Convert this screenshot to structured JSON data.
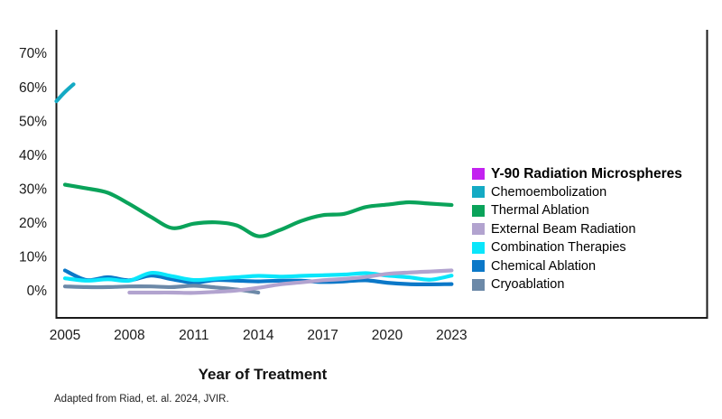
{
  "chart_data": {
    "type": "line",
    "title": "",
    "xlabel": "Year of Treatment",
    "ylabel": "",
    "grid": false,
    "legend_position": "inside-right",
    "x_axis": {
      "ticks": [
        2005,
        2008,
        2011,
        2014,
        2017,
        2020,
        2023
      ],
      "range_years": [
        2004.5,
        2023
      ]
    },
    "y_axis": {
      "ticks": [
        {
          "value": 0,
          "label": "0%"
        },
        {
          "value": 10,
          "label": "10%"
        },
        {
          "value": 20,
          "label": "20%"
        },
        {
          "value": 30,
          "label": "30%"
        },
        {
          "value": 40,
          "label": "40%"
        },
        {
          "value": 50,
          "label": "50%"
        },
        {
          "value": 60,
          "label": "60%"
        },
        {
          "value": 70,
          "label": "70%"
        }
      ],
      "unit": "%",
      "range": [
        0,
        75
      ]
    },
    "series": [
      {
        "name": "Y-90 Radiation Microspheres",
        "color": "#c322f0",
        "years": [],
        "values": [],
        "note": "legend entry only; no line visible in plot area"
      },
      {
        "name": "Chemoembolization",
        "color": "#14aac4",
        "years": [
          2004.6,
          2005,
          2005.4
        ],
        "values": [
          55.8,
          58.5,
          60.8
        ],
        "note": "only a short rising segment near 2005 is visible; line truncated"
      },
      {
        "name": "Thermal Ablation",
        "color": "#0aa35a",
        "years": [
          2005,
          2006,
          2007,
          2008,
          2009,
          2010,
          2011,
          2012,
          2013,
          2014,
          2015,
          2016,
          2017,
          2018,
          2019,
          2020,
          2021,
          2022,
          2023
        ],
        "values": [
          31.2,
          30.1,
          28.8,
          25.5,
          21.7,
          18.4,
          19.7,
          20.1,
          19.2,
          16.0,
          17.8,
          20.5,
          22.2,
          22.6,
          24.6,
          25.3,
          26.0,
          25.6,
          25.2
        ]
      },
      {
        "name": "External Beam Radiation",
        "color": "#b2a3cf",
        "years": [
          2008,
          2009,
          2010,
          2011,
          2012,
          2013,
          2014,
          2015,
          2016,
          2017,
          2018,
          2019,
          2020,
          2021,
          2022,
          2023
        ],
        "values": [
          -0.6,
          -0.6,
          -0.6,
          -0.7,
          -0.4,
          0.0,
          0.8,
          1.8,
          2.4,
          3.0,
          3.4,
          4.0,
          4.9,
          5.3,
          5.6,
          5.9
        ]
      },
      {
        "name": "Combination Therapies",
        "color": "#0ae6fb",
        "years": [
          2005,
          2006,
          2007,
          2008,
          2009,
          2010,
          2011,
          2012,
          2013,
          2014,
          2015,
          2016,
          2017,
          2018,
          2019,
          2020,
          2021,
          2022,
          2023
        ],
        "values": [
          3.6,
          2.9,
          3.3,
          2.9,
          5.2,
          4.2,
          3.1,
          3.5,
          3.9,
          4.3,
          4.1,
          4.3,
          4.5,
          4.7,
          5.1,
          4.4,
          3.9,
          3.2,
          4.4
        ]
      },
      {
        "name": "Chemical Ablation",
        "color": "#0b78c8",
        "years": [
          2005,
          2006,
          2007,
          2008,
          2009,
          2010,
          2011,
          2012,
          2013,
          2014,
          2015,
          2016,
          2017,
          2018,
          2019,
          2020,
          2021,
          2022,
          2023
        ],
        "values": [
          5.9,
          3.1,
          3.9,
          3.0,
          4.4,
          3.3,
          2.3,
          3.1,
          2.9,
          2.7,
          2.9,
          2.9,
          2.5,
          2.7,
          3.0,
          2.3,
          1.9,
          1.8,
          1.9
        ]
      },
      {
        "name": "Cryoablation",
        "color": "#6c89a8",
        "years": [
          2005,
          2006,
          2007,
          2008,
          2009,
          2010,
          2011,
          2012,
          2013,
          2014
        ],
        "values": [
          1.2,
          1.0,
          1.0,
          1.2,
          1.2,
          1.0,
          1.4,
          0.9,
          0.3,
          -0.6
        ],
        "note": "line ends around 2014"
      }
    ]
  },
  "footer": {
    "source_note": "Adapted from Riad, et. al. 2024, JVIR."
  }
}
